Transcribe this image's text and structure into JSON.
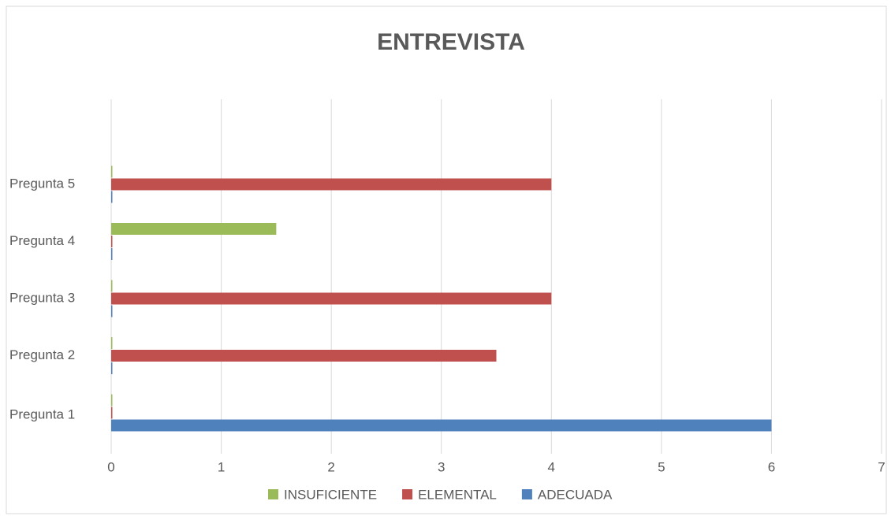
{
  "chart_data": {
    "type": "bar",
    "orientation": "horizontal",
    "title": "ENTREVISTA",
    "categories": [
      "Pregunta 1",
      "Pregunta 2",
      "Pregunta 3",
      "Pregunta 4",
      "Pregunta 5"
    ],
    "series": [
      {
        "name": "INSUFICIENTE",
        "color": "#9bbb59",
        "values": [
          0,
          0,
          0,
          1.5,
          0
        ]
      },
      {
        "name": "ELEMENTAL",
        "color": "#c0504d",
        "values": [
          0,
          3.5,
          4,
          0,
          4
        ]
      },
      {
        "name": "ADECUADA",
        "color": "#4f81bd",
        "values": [
          6,
          0,
          0,
          0,
          0
        ]
      }
    ],
    "xlim": [
      0,
      7
    ],
    "xticks": [
      0,
      1,
      2,
      3,
      4,
      5,
      6,
      7
    ],
    "grid": true,
    "legend": "bottom"
  }
}
